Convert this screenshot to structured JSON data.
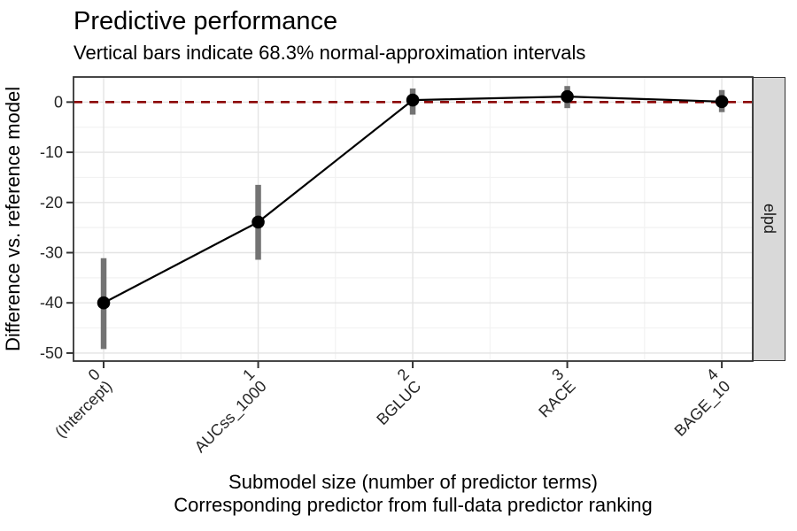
{
  "chart_data": {
    "type": "line",
    "title": "Predictive performance",
    "subtitle": "Vertical bars indicate 68.3% normal-approximation intervals",
    "ylabel": "Difference vs. reference model",
    "xlabel_line1": "Submodel size (number of predictor terms)",
    "xlabel_line2": "Corresponding predictor from full-data predictor ranking",
    "facet_label": "elpd",
    "x": [
      0,
      1,
      2,
      3,
      4
    ],
    "x_tick_labels": [
      [
        "0",
        "(Intercept)"
      ],
      [
        "1",
        "AUCss_1000"
      ],
      [
        "2",
        "BGLUC"
      ],
      [
        "3",
        "RACE"
      ],
      [
        "4",
        "BAGE_10"
      ]
    ],
    "yticks": [
      0,
      -10,
      -20,
      -30,
      -40,
      -50
    ],
    "ylim": [
      -51.6,
      5.0
    ],
    "xlim": [
      -0.195,
      4.2
    ],
    "grid": true,
    "legend": "none",
    "reference_line_y": 0,
    "series": [
      {
        "name": "elpd difference vs. reference model",
        "values": [
          -40.0,
          -23.9,
          0.4,
          1.1,
          0.1
        ],
        "ci_lower": [
          -49.2,
          -31.4,
          -2.5,
          -1.2,
          -2.0
        ],
        "ci_upper": [
          -31.1,
          -16.5,
          2.7,
          3.2,
          2.4
        ]
      }
    ],
    "interval_label": "68.3% normal-approximation interval",
    "colors": {
      "point": "#000000",
      "line": "#000000",
      "interval": "#737373",
      "reference_line": "#8B0000",
      "strip_fill": "#D9D9D9",
      "grid_major": "#E4E4E4",
      "grid_minor": "#F2F2F2",
      "panel_border": "#333333",
      "tick_text": "#262626"
    }
  }
}
